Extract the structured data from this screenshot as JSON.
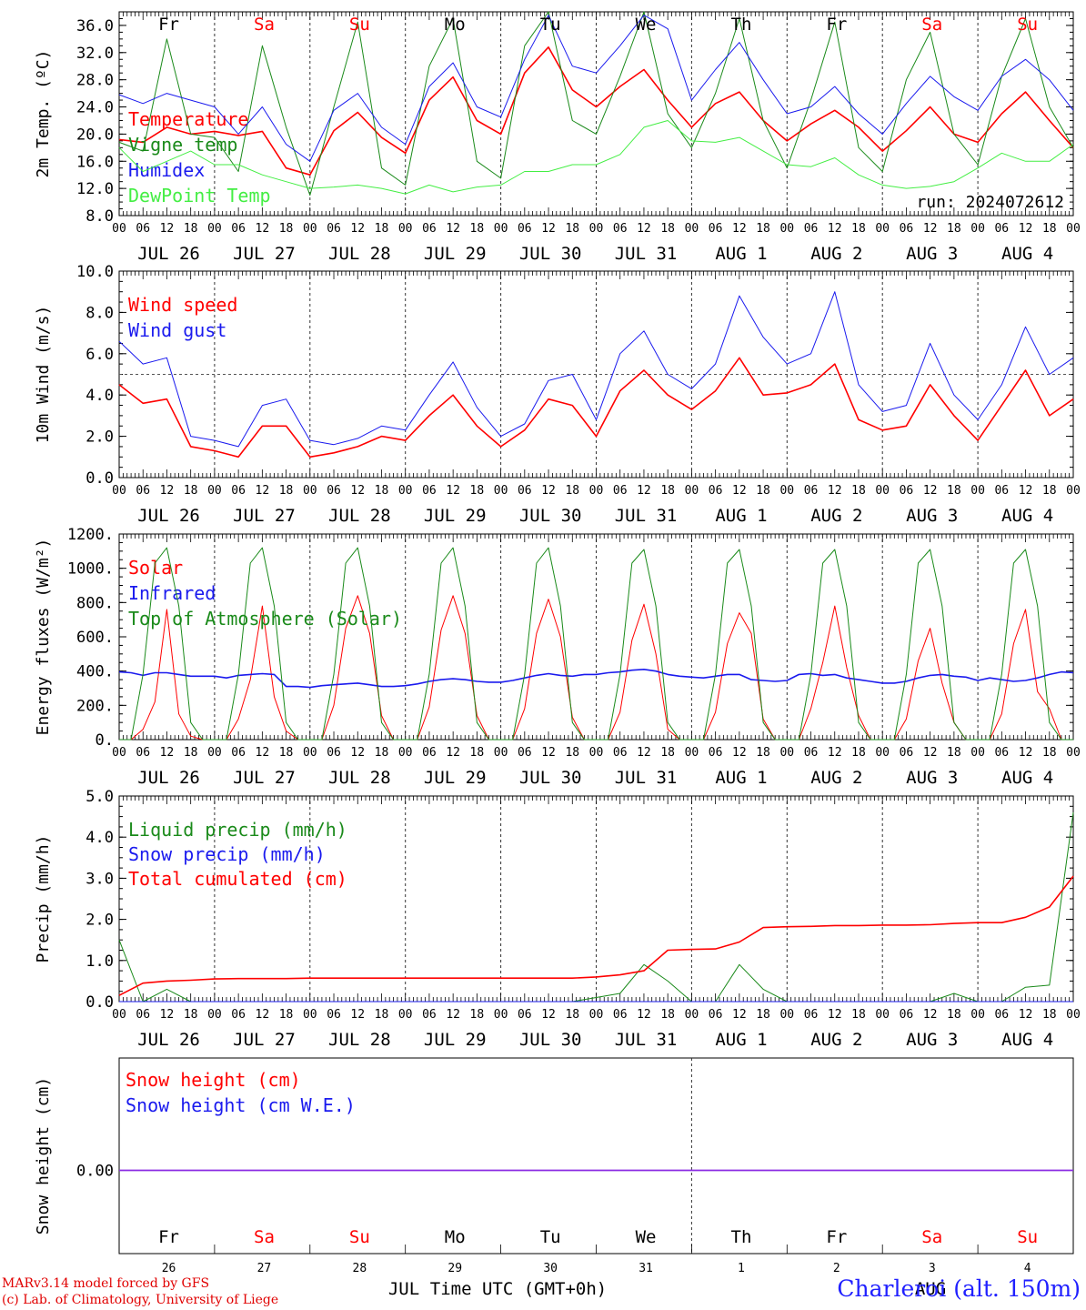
{
  "colors": {
    "red": "#ff0000",
    "green": "#1a8a1a",
    "lightgreen": "#44ee44",
    "blue": "#1a1aee",
    "purple": "#8a2be2",
    "axis": "#000000"
  },
  "weekdays": [
    {
      "label": "Fr",
      "weekend": false
    },
    {
      "label": "Sa",
      "weekend": true
    },
    {
      "label": "Su",
      "weekend": true
    },
    {
      "label": "Mo",
      "weekend": false
    },
    {
      "label": "Tu",
      "weekend": false
    },
    {
      "label": "We",
      "weekend": false
    },
    {
      "label": "Th",
      "weekend": false
    },
    {
      "label": "Fr",
      "weekend": false
    },
    {
      "label": "Sa",
      "weekend": true
    },
    {
      "label": "Su",
      "weekend": true
    }
  ],
  "date_labels": [
    "JUL 26",
    "JUL 27",
    "JUL 28",
    "JUL 29",
    "JUL 30",
    "JUL 31",
    "AUG  1",
    "AUG  2",
    "AUG  3",
    "AUG  4"
  ],
  "hour_ticks": [
    "00",
    "06",
    "12",
    "18"
  ],
  "hour_end": "00",
  "footer": {
    "day_numbers": [
      "26",
      "27",
      "28",
      "29",
      "30",
      "31",
      "1",
      "2",
      "3",
      "4"
    ],
    "month_left": "JUL",
    "month_right": "AUG",
    "xlabel": "Time UTC (GMT+0h)",
    "credit_line1": "MARv3.14 model forced by GFS",
    "credit_line2": "(c) Lab. of Climatology, University of Liege",
    "station": "Charleroi (alt. 150m)"
  },
  "chart_data": [
    {
      "type": "line",
      "ylabel": "2m Temp. (ºC)",
      "ylim": [
        8,
        38
      ],
      "yticks": [
        "8.0",
        "12.0",
        "16.0",
        "20.0",
        "24.0",
        "28.0",
        "32.0",
        "36.0"
      ],
      "ytick_values": [
        8,
        12,
        16,
        20,
        24,
        28,
        32,
        36
      ],
      "annotation": "run: 2024072612",
      "x_unit": "hours since JUL 26 00 UTC, 6-hourly",
      "series": [
        {
          "name": "Temperature",
          "color": "red",
          "values": [
            19.2,
            18.8,
            21.0,
            20.0,
            20.4,
            19.8,
            20.4,
            15.0,
            14.0,
            20.5,
            23.2,
            19.5,
            17.2,
            25.0,
            28.4,
            22.0,
            20.0,
            29.0,
            32.8,
            26.5,
            24.0,
            27.0,
            29.5,
            25.0,
            21.0,
            24.5,
            26.2,
            22.0,
            19.0,
            21.5,
            23.5,
            21.0,
            17.5,
            20.5,
            24.0,
            20.0,
            18.8,
            23.0,
            26.2,
            22.0,
            18.0
          ]
        },
        {
          "name": "Vigne temp",
          "color": "green",
          "values": [
            18.8,
            17.5,
            34.0,
            20.0,
            19.5,
            14.5,
            33.0,
            21.0,
            11.0,
            24.0,
            36.5,
            15.0,
            12.5,
            30.0,
            37.0,
            16.0,
            13.5,
            33.0,
            38.0,
            22.0,
            20.0,
            28.5,
            38.0,
            23.0,
            18.0,
            26.0,
            37.0,
            22.0,
            15.0,
            25.0,
            36.5,
            18.0,
            14.5,
            28.0,
            35.0,
            20.0,
            15.5,
            28.5,
            37.0,
            24.0,
            18.0
          ]
        },
        {
          "name": "Humidex",
          "color": "blue",
          "values": [
            25.8,
            24.5,
            26.0,
            25.0,
            24.0,
            20.0,
            24.0,
            18.5,
            16.0,
            23.5,
            26.0,
            21.0,
            18.5,
            27.0,
            30.5,
            24.0,
            22.5,
            31.0,
            37.5,
            30.0,
            29.0,
            33.0,
            37.5,
            35.5,
            25.0,
            29.5,
            33.5,
            28.0,
            23.0,
            24.0,
            27.0,
            23.0,
            20.0,
            24.5,
            28.5,
            25.5,
            23.5,
            28.5,
            31.0,
            28.0,
            23.5
          ]
        },
        {
          "name": "DewPoint Temp",
          "color": "lightgreen",
          "values": [
            18.0,
            14.5,
            16.0,
            17.5,
            15.5,
            15.5,
            14.0,
            13.0,
            12.0,
            12.2,
            12.5,
            12.0,
            11.2,
            12.5,
            11.5,
            12.2,
            12.5,
            14.5,
            14.5,
            15.5,
            15.5,
            17.0,
            21.0,
            22.0,
            19.0,
            18.8,
            19.5,
            17.5,
            15.5,
            15.2,
            16.5,
            14.0,
            12.5,
            12.0,
            12.3,
            13.0,
            15.0,
            17.2,
            16.0,
            16.0,
            18.5
          ]
        }
      ]
    },
    {
      "type": "line",
      "ylabel": "10m Wind (m/s)",
      "ylim": [
        0,
        10
      ],
      "yticks": [
        "0.0",
        "2.0",
        "4.0",
        "6.0",
        "8.0",
        "10.0"
      ],
      "ytick_values": [
        0,
        2,
        4,
        6,
        8,
        10
      ],
      "reference_line": 5,
      "x_unit": "hours since JUL 26 00 UTC, 6-hourly",
      "series": [
        {
          "name": "Wind speed",
          "color": "red",
          "values": [
            4.5,
            3.6,
            3.8,
            1.5,
            1.3,
            1.0,
            2.5,
            2.5,
            1.0,
            1.2,
            1.5,
            2.0,
            1.8,
            3.0,
            4.0,
            2.5,
            1.5,
            2.3,
            3.8,
            3.5,
            2.0,
            4.2,
            5.2,
            4.0,
            3.3,
            4.2,
            5.8,
            4.0,
            4.1,
            4.5,
            5.5,
            2.8,
            2.3,
            2.5,
            4.5,
            3.0,
            1.8,
            3.5,
            5.2,
            3.0,
            3.8
          ]
        },
        {
          "name": "Wind gust",
          "color": "blue",
          "values": [
            6.6,
            5.5,
            5.8,
            2.0,
            1.8,
            1.5,
            3.5,
            3.8,
            1.8,
            1.6,
            1.9,
            2.5,
            2.3,
            4.0,
            5.6,
            3.4,
            2.0,
            2.6,
            4.7,
            5.0,
            2.8,
            6.0,
            7.1,
            5.0,
            4.3,
            5.5,
            8.8,
            6.8,
            5.5,
            6.0,
            9.0,
            4.5,
            3.2,
            3.5,
            6.5,
            4.0,
            2.8,
            4.5,
            7.3,
            5.0,
            5.8
          ]
        }
      ]
    },
    {
      "type": "line",
      "ylabel": "Energy fluxes (W/m²)",
      "ylim": [
        0,
        1200
      ],
      "yticks": [
        "0.",
        "200.",
        "400.",
        "600.",
        "800.",
        "1000.",
        "1200."
      ],
      "ytick_values": [
        0,
        200,
        400,
        600,
        800,
        1000,
        1200
      ],
      "x_unit": "hours since JUL 26 00 UTC, 3-hourly",
      "series": [
        {
          "name": "Solar",
          "color": "red",
          "values": [
            0,
            0,
            60,
            220,
            760,
            150,
            20,
            0,
            0,
            0,
            120,
            350,
            780,
            250,
            50,
            0,
            0,
            0,
            200,
            650,
            840,
            620,
            140,
            0,
            0,
            0,
            190,
            640,
            840,
            620,
            140,
            0,
            0,
            0,
            180,
            620,
            820,
            600,
            130,
            0,
            0,
            0,
            160,
            580,
            790,
            500,
            60,
            0,
            0,
            0,
            160,
            560,
            740,
            620,
            120,
            0,
            0,
            0,
            180,
            450,
            780,
            420,
            140,
            0,
            0,
            0,
            120,
            460,
            650,
            330,
            100,
            0,
            0,
            0,
            150,
            560,
            760,
            280,
            180,
            0,
            0
          ]
        },
        {
          "name": "Infrared",
          "color": "blue",
          "values": [
            395,
            390,
            375,
            390,
            390,
            380,
            370,
            370,
            370,
            360,
            375,
            380,
            385,
            380,
            310,
            310,
            305,
            315,
            320,
            325,
            330,
            320,
            310,
            310,
            315,
            325,
            340,
            350,
            355,
            350,
            340,
            335,
            335,
            345,
            360,
            375,
            385,
            375,
            370,
            380,
            380,
            390,
            395,
            405,
            410,
            400,
            380,
            370,
            365,
            360,
            370,
            380,
            380,
            350,
            345,
            340,
            345,
            380,
            385,
            375,
            380,
            360,
            350,
            340,
            330,
            330,
            340,
            360,
            375,
            380,
            370,
            365,
            345,
            360,
            350,
            340,
            345,
            360,
            380,
            395,
            390
          ]
        },
        {
          "name": "Top of Atmosphere (Solar)",
          "color": "green",
          "values": [
            0,
            0,
            380,
            1030,
            1120,
            780,
            100,
            0,
            0,
            0,
            380,
            1030,
            1120,
            780,
            100,
            0,
            0,
            0,
            380,
            1030,
            1120,
            780,
            100,
            0,
            0,
            0,
            380,
            1030,
            1120,
            780,
            100,
            0,
            0,
            0,
            380,
            1030,
            1120,
            780,
            100,
            0,
            0,
            0,
            380,
            1030,
            1110,
            780,
            100,
            0,
            0,
            0,
            380,
            1030,
            1110,
            780,
            100,
            0,
            0,
            0,
            380,
            1030,
            1110,
            780,
            100,
            0,
            0,
            0,
            380,
            1030,
            1110,
            780,
            100,
            0,
            0,
            0,
            380,
            1030,
            1110,
            780,
            100,
            0,
            0
          ]
        }
      ]
    },
    {
      "type": "line",
      "ylabel": "Precip (mm/h)",
      "ylim": [
        0,
        5
      ],
      "yticks": [
        "0.0",
        "1.0",
        "2.0",
        "3.0",
        "4.0",
        "5.0"
      ],
      "ytick_values": [
        0,
        1,
        2,
        3,
        4,
        5
      ],
      "x_unit": "hours since JUL 26 00 UTC, 6-hourly",
      "series": [
        {
          "name": "Liquid precip (mm/h)",
          "color": "green",
          "values": [
            1.5,
            0.0,
            0.3,
            0.0,
            0.0,
            0.0,
            0.0,
            0.0,
            0.0,
            0.0,
            0.0,
            0.0,
            0.0,
            0.0,
            0.0,
            0.0,
            0.0,
            0.0,
            0.0,
            0.0,
            0.1,
            0.2,
            0.9,
            0.5,
            0.0,
            0.0,
            0.9,
            0.3,
            0.0,
            0.0,
            0.0,
            0.0,
            0.0,
            0.0,
            0.0,
            0.2,
            0.0,
            0.0,
            0.35,
            0.4,
            4.6
          ]
        },
        {
          "name": "Snow precip (mm/h)",
          "color": "blue",
          "values": [
            0,
            0,
            0,
            0,
            0,
            0,
            0,
            0,
            0,
            0,
            0,
            0,
            0,
            0,
            0,
            0,
            0,
            0,
            0,
            0,
            0,
            0,
            0,
            0,
            0,
            0,
            0,
            0,
            0,
            0,
            0,
            0,
            0,
            0,
            0,
            0,
            0,
            0,
            0,
            0,
            0
          ]
        },
        {
          "name": "Total cumulated (cm)",
          "color": "red",
          "values": [
            0.15,
            0.45,
            0.5,
            0.52,
            0.55,
            0.56,
            0.56,
            0.56,
            0.57,
            0.57,
            0.57,
            0.57,
            0.57,
            0.57,
            0.57,
            0.57,
            0.57,
            0.57,
            0.57,
            0.57,
            0.6,
            0.65,
            0.75,
            1.25,
            1.27,
            1.28,
            1.45,
            1.8,
            1.82,
            1.83,
            1.85,
            1.85,
            1.86,
            1.86,
            1.87,
            1.9,
            1.92,
            1.92,
            2.05,
            2.3,
            3.05
          ]
        }
      ]
    },
    {
      "type": "line",
      "ylabel": "Snow height (cm)",
      "yticks": [
        "0.00"
      ],
      "ytick_values": [
        0
      ],
      "x_unit": "hours since JUL 26 00 UTC, 6-hourly",
      "series": [
        {
          "name": "Snow height (cm)",
          "color": "red",
          "values": [
            0,
            0
          ]
        },
        {
          "name": "Snow height (cm W.E.)",
          "color": "blue",
          "values": [
            0,
            0
          ]
        }
      ]
    }
  ]
}
